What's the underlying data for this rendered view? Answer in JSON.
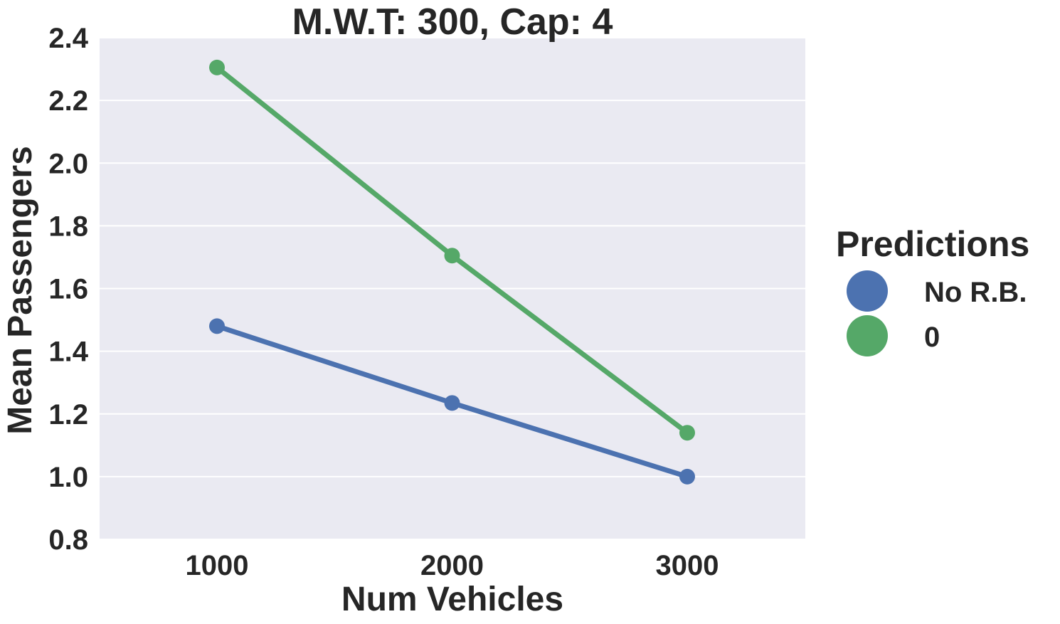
{
  "chart_data": {
    "type": "line",
    "title": "M.W.T: 300, Cap: 4",
    "xlabel": "Num Vehicles",
    "ylabel": "Mean Passengers",
    "categories": [
      "1000",
      "2000",
      "3000"
    ],
    "ylim": [
      0.8,
      2.4
    ],
    "yticks": [
      "0.8",
      "1.0",
      "1.2",
      "1.4",
      "1.6",
      "1.8",
      "2.0",
      "2.2",
      "2.4"
    ],
    "grid": true,
    "background": "#EAEAF2",
    "legend": {
      "title": "Predictions",
      "placement": "right"
    },
    "series": [
      {
        "name": "No R.B.",
        "color": "#4C72B0",
        "values": [
          1.48,
          1.235,
          1.0
        ]
      },
      {
        "name": "0",
        "color": "#55A868",
        "values": [
          2.305,
          1.705,
          1.14
        ]
      }
    ]
  }
}
